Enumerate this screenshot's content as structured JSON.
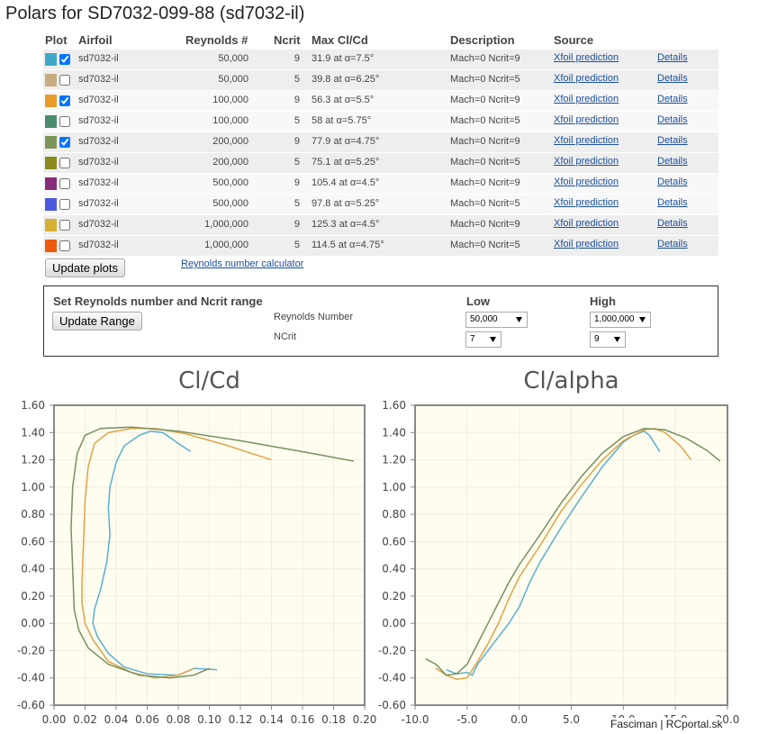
{
  "header": {
    "title": "Polars for SD7032-099-88 (sd7032-il)"
  },
  "table": {
    "columns": [
      "Plot",
      "Airfoil",
      "Reynolds #",
      "Ncrit",
      "Max Cl/Cd",
      "Description",
      "Source"
    ],
    "rows": [
      {
        "color": "#3fa8c8",
        "checked": true,
        "airfoil": "sd7032-il",
        "reynolds": "50,000",
        "ncrit": "9",
        "max": "31.9 at α=7.5°",
        "description": "Mach=0 Ncrit=9",
        "source": "Xfoil prediction",
        "details": "Details"
      },
      {
        "color": "#c9ad82",
        "checked": false,
        "airfoil": "sd7032-il",
        "reynolds": "50,000",
        "ncrit": "5",
        "max": "39.8 at α=6.25°",
        "description": "Mach=0 Ncrit=5",
        "source": "Xfoil prediction",
        "details": "Details"
      },
      {
        "color": "#e89c2c",
        "checked": true,
        "airfoil": "sd7032-il",
        "reynolds": "100,000",
        "ncrit": "9",
        "max": "56.3 at α=5.5°",
        "description": "Mach=0 Ncrit=9",
        "source": "Xfoil prediction",
        "details": "Details"
      },
      {
        "color": "#4b8c6e",
        "checked": false,
        "airfoil": "sd7032-il",
        "reynolds": "100,000",
        "ncrit": "5",
        "max": "58 at α=5.75°",
        "description": "Mach=0 Ncrit=5",
        "source": "Xfoil prediction",
        "details": "Details"
      },
      {
        "color": "#7e9559",
        "checked": true,
        "airfoil": "sd7032-il",
        "reynolds": "200,000",
        "ncrit": "9",
        "max": "77.9 at α=4.75°",
        "description": "Mach=0 Ncrit=9",
        "source": "Xfoil prediction",
        "details": "Details"
      },
      {
        "color": "#8c8a1c",
        "checked": false,
        "airfoil": "sd7032-il",
        "reynolds": "200,000",
        "ncrit": "5",
        "max": "75.1 at α=5.25°",
        "description": "Mach=0 Ncrit=5",
        "source": "Xfoil prediction",
        "details": "Details"
      },
      {
        "color": "#8a2c7c",
        "checked": false,
        "airfoil": "sd7032-il",
        "reynolds": "500,000",
        "ncrit": "9",
        "max": "105.4 at α=4.5°",
        "description": "Mach=0 Ncrit=9",
        "source": "Xfoil prediction",
        "details": "Details"
      },
      {
        "color": "#4a5ae0",
        "checked": false,
        "airfoil": "sd7032-il",
        "reynolds": "500,000",
        "ncrit": "5",
        "max": "97.8 at α=5.25°",
        "description": "Mach=0 Ncrit=5",
        "source": "Xfoil prediction",
        "details": "Details"
      },
      {
        "color": "#d6b032",
        "checked": false,
        "airfoil": "sd7032-il",
        "reynolds": "1,000,000",
        "ncrit": "9",
        "max": "125.3 at α=4.5°",
        "description": "Mach=0 Ncrit=9",
        "source": "Xfoil prediction",
        "details": "Details"
      },
      {
        "color": "#f05a10",
        "checked": false,
        "airfoil": "sd7032-il",
        "reynolds": "1,000,000",
        "ncrit": "5",
        "max": "114.5 at α=4.75°",
        "description": "Mach=0 Ncrit=5",
        "source": "Xfoil prediction",
        "details": "Details"
      }
    ]
  },
  "update_button": "Update plots",
  "calculator_link": "Reynolds number calculator",
  "range": {
    "title": "Set Reynolds number and Ncrit range",
    "button": "Update Range",
    "low": "Low",
    "high": "High",
    "reynolds_label": "Reynolds Number",
    "ncrit_label": "NCrit",
    "reynolds_low": "50,000",
    "reynolds_high": "1,000,000",
    "ncrit_low": "7",
    "ncrit_high": "9"
  },
  "chart_data": [
    {
      "type": "line",
      "title": "Cl/Cd",
      "grid": true,
      "xlim": [
        0,
        0.2
      ],
      "xticks": [
        {
          "value": 0,
          "label": "0.00"
        },
        {
          "value": 0.02,
          "label": "0.02"
        },
        {
          "value": 0.04,
          "label": "0.04"
        },
        {
          "value": 0.06,
          "label": "0.06"
        },
        {
          "value": 0.08,
          "label": "0.08"
        },
        {
          "value": 0.1,
          "label": "0.10"
        },
        {
          "value": 0.12,
          "label": "0.12"
        },
        {
          "value": 0.14,
          "label": "0.14"
        },
        {
          "value": 0.16,
          "label": "0.16"
        },
        {
          "value": 0.18,
          "label": "0.18"
        },
        {
          "value": 0.2,
          "label": "0.20"
        }
      ],
      "ylim": [
        -0.6,
        1.6
      ],
      "yticks": [
        {
          "value": -0.6,
          "label": "-0.60"
        },
        {
          "value": -0.4,
          "label": "-0.40"
        },
        {
          "value": -0.2,
          "label": "-0.20"
        },
        {
          "value": 0,
          "label": "0.00"
        },
        {
          "value": 0.2,
          "label": "0.20"
        },
        {
          "value": 0.4,
          "label": "0.40"
        },
        {
          "value": 0.6,
          "label": "0.60"
        },
        {
          "value": 0.8,
          "label": "0.80"
        },
        {
          "value": 1,
          "label": "1.00"
        },
        {
          "value": 1.2,
          "label": "1.20"
        },
        {
          "value": 1.4,
          "label": "1.40"
        },
        {
          "value": 1.6,
          "label": "1.60"
        }
      ],
      "series": [
        {
          "color": "#5aaed0",
          "x": [
            0.105,
            0.09,
            0.08,
            0.06,
            0.045,
            0.035,
            0.028,
            0.025,
            0.026,
            0.03,
            0.034,
            0.036,
            0.035,
            0.036,
            0.04,
            0.045,
            0.055,
            0.062,
            0.07,
            0.08,
            0.088
          ],
          "values": [
            -0.34,
            -0.33,
            -0.38,
            -0.37,
            -0.32,
            -0.22,
            -0.1,
            0,
            0.1,
            0.25,
            0.45,
            0.65,
            0.85,
            1,
            1.18,
            1.3,
            1.38,
            1.41,
            1.4,
            1.32,
            1.26
          ]
        },
        {
          "color": "#e3a245",
          "x": [
            0.09,
            0.08,
            0.065,
            0.05,
            0.035,
            0.025,
            0.02,
            0.018,
            0.018,
            0.019,
            0.02,
            0.022,
            0.026,
            0.035,
            0.05,
            0.065,
            0.085,
            0.11,
            0.14
          ],
          "values": [
            -0.33,
            -0.38,
            -0.4,
            -0.36,
            -0.28,
            -0.12,
            0,
            0.15,
            0.3,
            0.6,
            0.9,
            1.15,
            1.32,
            1.4,
            1.43,
            1.43,
            1.39,
            1.31,
            1.2
          ]
        },
        {
          "color": "#789060",
          "x": [
            0.1,
            0.09,
            0.075,
            0.055,
            0.035,
            0.022,
            0.016,
            0.013,
            0.012,
            0.011,
            0.012,
            0.015,
            0.02,
            0.03,
            0.05,
            0.08,
            0.12,
            0.16,
            0.193
          ],
          "values": [
            -0.33,
            -0.38,
            -0.4,
            -0.38,
            -0.3,
            -0.18,
            -0.05,
            0.1,
            0.4,
            0.7,
            1,
            1.25,
            1.38,
            1.43,
            1.44,
            1.41,
            1.34,
            1.26,
            1.19
          ]
        }
      ]
    },
    {
      "type": "line",
      "title": "Cl/alpha",
      "grid": true,
      "xlim": [
        -10,
        20
      ],
      "xticks": [
        {
          "value": -10,
          "label": "-10.0"
        },
        {
          "value": -5,
          "label": "-5.0"
        },
        {
          "value": 0,
          "label": "0.0"
        },
        {
          "value": 5,
          "label": "5.0"
        },
        {
          "value": 10,
          "label": "10.0"
        },
        {
          "value": 15,
          "label": "15.0"
        },
        {
          "value": 20,
          "label": "20.0"
        }
      ],
      "ylim": [
        -0.6,
        1.6
      ],
      "yticks": [
        {
          "value": -0.6,
          "label": "-0.60"
        },
        {
          "value": -0.4,
          "label": "-0.40"
        },
        {
          "value": -0.2,
          "label": "-0.20"
        },
        {
          "value": 0,
          "label": "0.00"
        },
        {
          "value": 0.2,
          "label": "0.20"
        },
        {
          "value": 0.4,
          "label": "0.40"
        },
        {
          "value": 0.6,
          "label": "0.60"
        },
        {
          "value": 0.8,
          "label": "0.80"
        },
        {
          "value": 1,
          "label": "1.00"
        },
        {
          "value": 1.2,
          "label": "1.20"
        },
        {
          "value": 1.4,
          "label": "1.40"
        },
        {
          "value": 1.6,
          "label": "1.60"
        }
      ],
      "series": [
        {
          "color": "#5aaed0",
          "x": [
            -7,
            -6,
            -5,
            -4.5,
            -4,
            -3,
            -2,
            -1,
            0,
            1,
            2,
            4,
            6,
            8,
            10,
            11,
            12,
            12.5,
            13.5
          ],
          "values": [
            -0.34,
            -0.37,
            -0.36,
            -0.38,
            -0.3,
            -0.2,
            -0.1,
            0,
            0.12,
            0.3,
            0.45,
            0.7,
            0.93,
            1.15,
            1.33,
            1.38,
            1.41,
            1.38,
            1.26
          ]
        },
        {
          "color": "#e3a245",
          "x": [
            -8,
            -7,
            -6,
            -5,
            -4,
            -3,
            -2,
            -1,
            0,
            2,
            4,
            6,
            8,
            10,
            12,
            13,
            14,
            15.5,
            16.5
          ],
          "values": [
            -0.33,
            -0.38,
            -0.41,
            -0.4,
            -0.28,
            -0.15,
            0,
            0.18,
            0.34,
            0.57,
            0.82,
            1.02,
            1.2,
            1.34,
            1.42,
            1.43,
            1.4,
            1.3,
            1.2
          ]
        },
        {
          "color": "#789060",
          "x": [
            -9,
            -8,
            -7,
            -6,
            -5,
            -4,
            -3,
            -2,
            -1,
            0,
            2,
            4,
            6,
            8,
            10,
            12,
            14,
            16,
            18,
            19.3
          ],
          "values": [
            -0.26,
            -0.3,
            -0.38,
            -0.37,
            -0.3,
            -0.15,
            0,
            0.15,
            0.3,
            0.43,
            0.65,
            0.88,
            1.08,
            1.25,
            1.37,
            1.43,
            1.42,
            1.36,
            1.27,
            1.19
          ]
        }
      ]
    }
  ],
  "footer": "Fasciman | RCportal.sk"
}
